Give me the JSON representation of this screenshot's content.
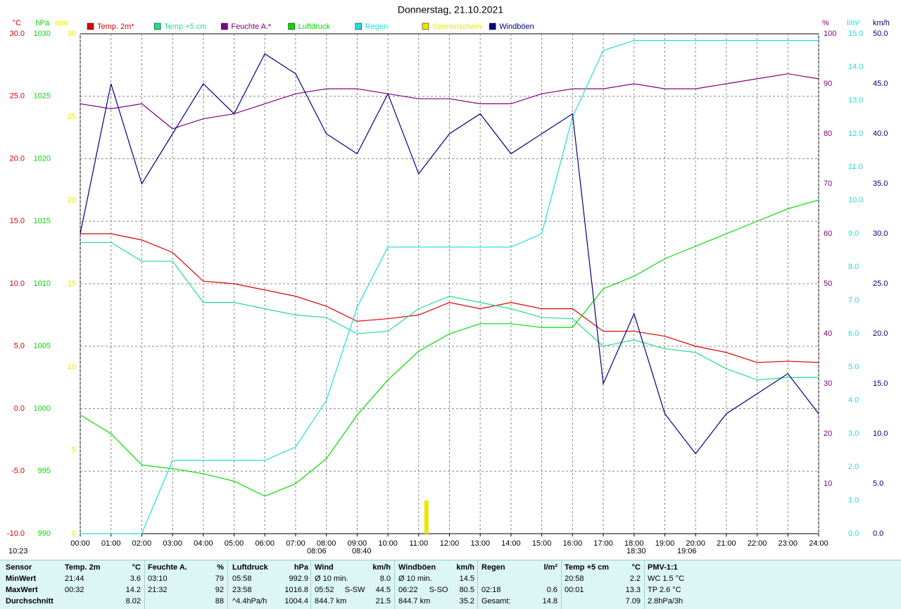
{
  "chart_data": {
    "type": "line",
    "title": "Donnerstag, 21.10.2021",
    "x": [
      0,
      1,
      2,
      3,
      4,
      5,
      6,
      7,
      8,
      9,
      10,
      11,
      12,
      13,
      14,
      15,
      16,
      17,
      18,
      19,
      20,
      21,
      22,
      23,
      24
    ],
    "xlim": [
      0,
      24
    ],
    "xticks": [
      {
        "value": 0,
        "label": "00:00"
      },
      {
        "value": 1,
        "label": "01:00"
      },
      {
        "value": 2,
        "label": "02:00"
      },
      {
        "value": 3,
        "label": "03:00"
      },
      {
        "value": 4,
        "label": "04:00"
      },
      {
        "value": 5,
        "label": "05:00"
      },
      {
        "value": 6,
        "label": "06:00"
      },
      {
        "value": 7,
        "label": "07:00"
      },
      {
        "value": 8,
        "label": "08:00"
      },
      {
        "value": 9,
        "label": "09:00"
      },
      {
        "value": 10,
        "label": "10:00"
      },
      {
        "value": 11,
        "label": "11:00"
      },
      {
        "value": 12,
        "label": "12:00"
      },
      {
        "value": 13,
        "label": "13:00"
      },
      {
        "value": 14,
        "label": "14:00"
      },
      {
        "value": 15,
        "label": "15:00"
      },
      {
        "value": 16,
        "label": "16:00"
      },
      {
        "value": 17,
        "label": "17:00"
      },
      {
        "value": 18,
        "label": "18:00"
      },
      {
        "value": 19,
        "label": "19:00"
      },
      {
        "value": 20,
        "label": "20:00"
      },
      {
        "value": 21,
        "label": "21:00"
      },
      {
        "value": 22,
        "label": "22:00"
      },
      {
        "value": 23,
        "label": "23:00"
      },
      {
        "value": 24,
        "label": "24:00"
      }
    ],
    "ylabel": "°C",
    "ylim": [
      -10,
      30
    ],
    "yticks": [
      {
        "value": -10,
        "label": "-10.0"
      },
      {
        "value": -5,
        "label": "-5.0"
      },
      {
        "value": 0,
        "label": "0.0"
      },
      {
        "value": 5,
        "label": "5.0"
      },
      {
        "value": 10,
        "label": "10.0"
      },
      {
        "value": 15,
        "label": "15.0"
      },
      {
        "value": 20,
        "label": "20.0"
      },
      {
        "value": 25,
        "label": "25.0"
      },
      {
        "value": 30,
        "label": "30.0"
      }
    ],
    "y2label": "hPa",
    "y2lim": [
      990,
      1030
    ],
    "y2ticks": [
      990,
      995,
      1000,
      1005,
      1010,
      1015,
      1020,
      1025,
      1030
    ],
    "y3label": "min",
    "y3lim": [
      0,
      30
    ],
    "y3ticks": [
      0,
      5,
      10,
      15,
      20,
      25,
      30
    ],
    "y4label": "%",
    "y4lim": [
      0,
      100
    ],
    "y4ticks": [
      10,
      20,
      30,
      40,
      50,
      60,
      70,
      80,
      90,
      100
    ],
    "y5label": "l/m²",
    "y5lim": [
      0,
      15
    ],
    "y5ticks": [
      {
        "value": 0,
        "label": "0.0"
      },
      {
        "value": 1,
        "label": "1.0"
      },
      {
        "value": 2,
        "label": "2.0"
      },
      {
        "value": 3,
        "label": "3.0"
      },
      {
        "value": 4,
        "label": "4.0"
      },
      {
        "value": 5,
        "label": "5.0"
      },
      {
        "value": 6,
        "label": "6.0"
      },
      {
        "value": 7,
        "label": "7.0"
      },
      {
        "value": 8,
        "label": "8.0"
      },
      {
        "value": 9,
        "label": "9.0"
      },
      {
        "value": 10,
        "label": "10.0"
      },
      {
        "value": 11,
        "label": "11.0"
      },
      {
        "value": 12,
        "label": "12.0"
      },
      {
        "value": 13,
        "label": "13.0"
      },
      {
        "value": 14,
        "label": "14.0"
      },
      {
        "value": 15,
        "label": "15.0"
      }
    ],
    "y6label": "km/h",
    "y6lim": [
      0,
      50
    ],
    "y6ticks": [
      {
        "value": 0,
        "label": "0.0"
      },
      {
        "value": 5,
        "label": "5.0"
      },
      {
        "value": 10,
        "label": "10.0"
      },
      {
        "value": 15,
        "label": "15.0"
      },
      {
        "value": 20,
        "label": "20.0"
      },
      {
        "value": 25,
        "label": "25.0"
      },
      {
        "value": 30,
        "label": "30.0"
      },
      {
        "value": 35,
        "label": "35.0"
      },
      {
        "value": 40,
        "label": "40.0"
      },
      {
        "value": 45,
        "label": "45.0"
      },
      {
        "value": 50,
        "label": "50.0"
      }
    ],
    "grid": true,
    "series": [
      {
        "name": "Temp. 2m*",
        "color": "#dd0000",
        "axis": "y",
        "values": [
          14.0,
          14.0,
          13.5,
          12.5,
          10.2,
          10.0,
          9.5,
          9.0,
          8.2,
          7.0,
          7.2,
          7.5,
          8.5,
          8.0,
          8.5,
          8.0,
          8.0,
          6.2,
          6.2,
          5.8,
          5.0,
          4.5,
          3.7,
          3.8,
          3.7
        ]
      },
      {
        "name": "Temp +5 cm",
        "color": "#22dd88",
        "axis": "y",
        "values": [
          13.3,
          13.3,
          11.8,
          11.8,
          8.5,
          8.5,
          8.0,
          7.5,
          7.3,
          6.0,
          6.2,
          8.0,
          9.0,
          8.5,
          8.0,
          7.3,
          7.2,
          5.0,
          5.5,
          4.8,
          4.5,
          3.2,
          2.3,
          2.5,
          2.5
        ]
      },
      {
        "name": "Feuchte A.*",
        "color": "#800080",
        "axis": "y4",
        "values": [
          86,
          85,
          86,
          81,
          83,
          84,
          86,
          88,
          89,
          89,
          88,
          87,
          87,
          86,
          86,
          88,
          89,
          89,
          90,
          89,
          89,
          90,
          91,
          92,
          91
        ]
      },
      {
        "name": "Luftdruck",
        "color": "#00dd00",
        "axis": "y2",
        "values": [
          999.5,
          998.0,
          995.5,
          995.2,
          994.8,
          994.2,
          993.0,
          994.0,
          996.0,
          999.5,
          1002.3,
          1004.6,
          1006.0,
          1006.8,
          1006.8,
          1006.5,
          1006.5,
          1009.6,
          1010.6,
          1012.0,
          1013.0,
          1014.0,
          1015.0,
          1016.0,
          1016.7
        ]
      },
      {
        "name": "Regen",
        "color": "#22dddd",
        "axis": "y5",
        "values": [
          0,
          0,
          0,
          2.2,
          2.2,
          2.2,
          2.2,
          2.6,
          4.0,
          6.8,
          8.6,
          8.6,
          8.6,
          8.6,
          8.6,
          9.0,
          12.5,
          14.5,
          14.8,
          14.8,
          14.8,
          14.8,
          14.8,
          14.8,
          14.8
        ]
      },
      {
        "name": "Sonnenschein",
        "color": "#e8e800",
        "axis": "y3",
        "type": "bar",
        "values": [
          0,
          0,
          0,
          0,
          0,
          0,
          0,
          0,
          0,
          0,
          0,
          2,
          0,
          0,
          0,
          0,
          0,
          0,
          0,
          0,
          0,
          0,
          0,
          0,
          0
        ]
      },
      {
        "name": "Windböen",
        "color": "#000080",
        "axis": "y6",
        "values": [
          30,
          45,
          35,
          40,
          45,
          42,
          48,
          46,
          40,
          38,
          44,
          36,
          40,
          42,
          38,
          40,
          42,
          15,
          22,
          12,
          8,
          12,
          14,
          16,
          12
        ]
      }
    ],
    "annotations": [
      "10:23",
      "08:06",
      "08:40",
      "18:30",
      "19:06"
    ]
  },
  "table": {
    "header": {
      "label": "Sensor",
      "columns": [
        [
          "Temp. 2m",
          "°C"
        ],
        [
          "Feuchte A.",
          "%"
        ],
        [
          "Luftdruck",
          "hPa"
        ],
        [
          "Wind",
          "km/h"
        ],
        [
          "Windböen",
          "km/h"
        ],
        [
          "Regen",
          "l/m²"
        ],
        [
          "Temp +5 cm",
          "°C"
        ],
        [
          "PMV-1:1"
        ]
      ]
    },
    "rows": [
      {
        "label": "MinWert",
        "cells": [
          [
            "21:44",
            "3.6"
          ],
          [
            "03:10",
            "79"
          ],
          [
            "05:58",
            "992.9"
          ],
          [
            "Ø 10 min.",
            "8.0"
          ],
          [
            "Ø 10 min.",
            "14.5"
          ],
          [],
          [
            "20:58",
            "2.2"
          ],
          [
            "WC 1.5 °C"
          ]
        ]
      },
      {
        "label": "MaxWert",
        "cells": [
          [
            "00:32",
            "14.2"
          ],
          [
            "21:32",
            "92"
          ],
          [
            "23:58",
            "1016.8"
          ],
          [
            "05:52",
            "S-SW",
            "44.5"
          ],
          [
            "06:22",
            "S-SO",
            "80.5"
          ],
          [
            "02:18",
            "0.6"
          ],
          [
            "00:01",
            "13.3"
          ],
          [
            "TP 2.6 °C"
          ]
        ]
      },
      {
        "label": "Durchschnitt",
        "cells": [
          [
            "8.02"
          ],
          [
            "88"
          ],
          [
            "^4.4hPa/h",
            "1004.4"
          ],
          [
            "844.7 km",
            "21.5"
          ],
          [
            "844.7 km",
            "35.2"
          ],
          [
            "Gesamt:",
            "14.8"
          ],
          [
            "7.09"
          ],
          [
            "2.8hPa/3h"
          ]
        ]
      }
    ]
  }
}
